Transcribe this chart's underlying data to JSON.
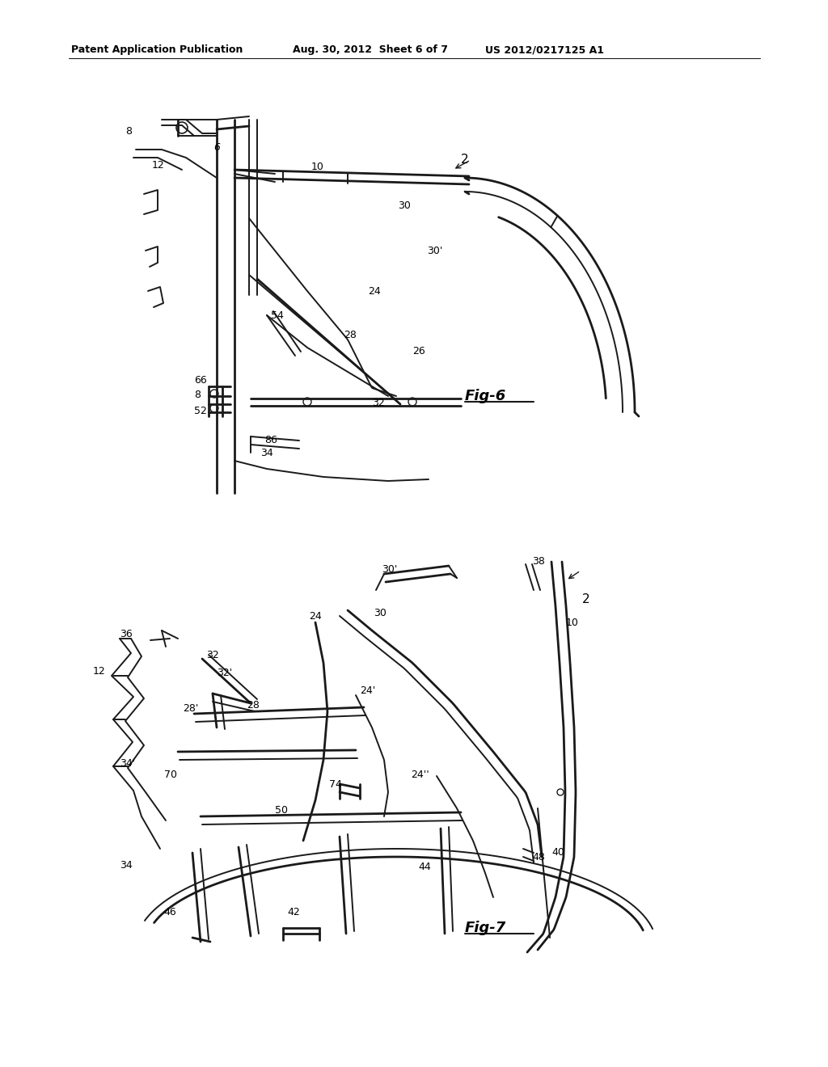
{
  "background_color": "#ffffff",
  "header_left": "Patent Application Publication",
  "header_mid": "Aug. 30, 2012  Sheet 6 of 7",
  "header_right": "US 2012/0217125 A1",
  "fig6_label": "Fig-6",
  "fig7_label": "Fig-7",
  "line_color": "#1a1a1a",
  "text_color": "#000000",
  "lw_thick": 2.0,
  "lw_med": 1.4,
  "lw_thin": 0.9,
  "label_fontsize": 9,
  "figlabel_fontsize": 13
}
